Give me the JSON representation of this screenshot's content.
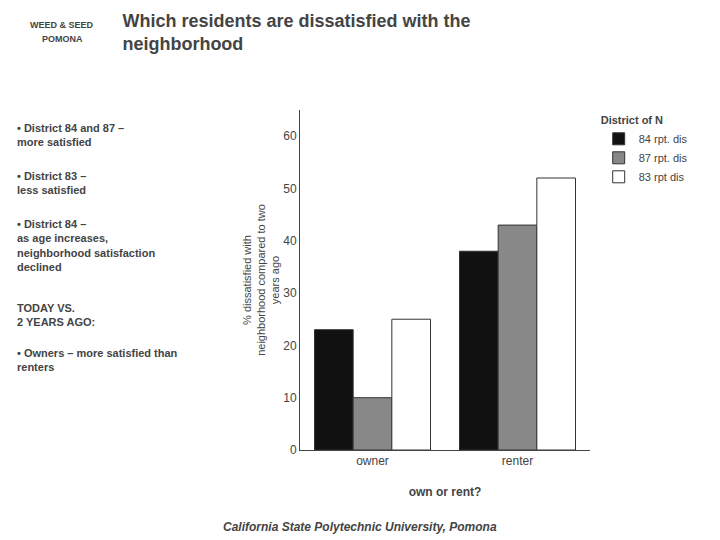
{
  "chart_data": {
    "type": "bar",
    "title": "Which residents are dissatisfied with the\nneighborhood",
    "xlabel": "own or rent?",
    "ylabel": "% dissatisfied with\nneighborhood compared to two\nyears ago",
    "categories": [
      "owner",
      "renter"
    ],
    "series": [
      {
        "name": "84 rpt. dis",
        "color": "#111111",
        "values": [
          23,
          38
        ]
      },
      {
        "name": "87 rpt. dis",
        "color": "#888888",
        "values": [
          10,
          43
        ]
      },
      {
        "name": "83 rpt dis",
        "color": "#ffffff",
        "values": [
          25,
          52
        ]
      }
    ],
    "ylim": [
      0,
      65
    ],
    "yticks": [
      0,
      10,
      20,
      30,
      40,
      50,
      60
    ],
    "grid": false,
    "legend": "right",
    "legend_title": "District of N",
    "annotations": [
      "WEED & SEED",
      "POMONA",
      "• District 84 and 87 –\nmore satisfied",
      "• District 83 –\nless satisfied",
      "• District 84 –\nas age increases,\nneighborhood satisfaction\ndeclined",
      "TODAY VS.\n2 YEARS AGO:",
      "• Owners – more satisfied than\nrenters",
      "California State Polytechnic University, Pomona"
    ]
  }
}
